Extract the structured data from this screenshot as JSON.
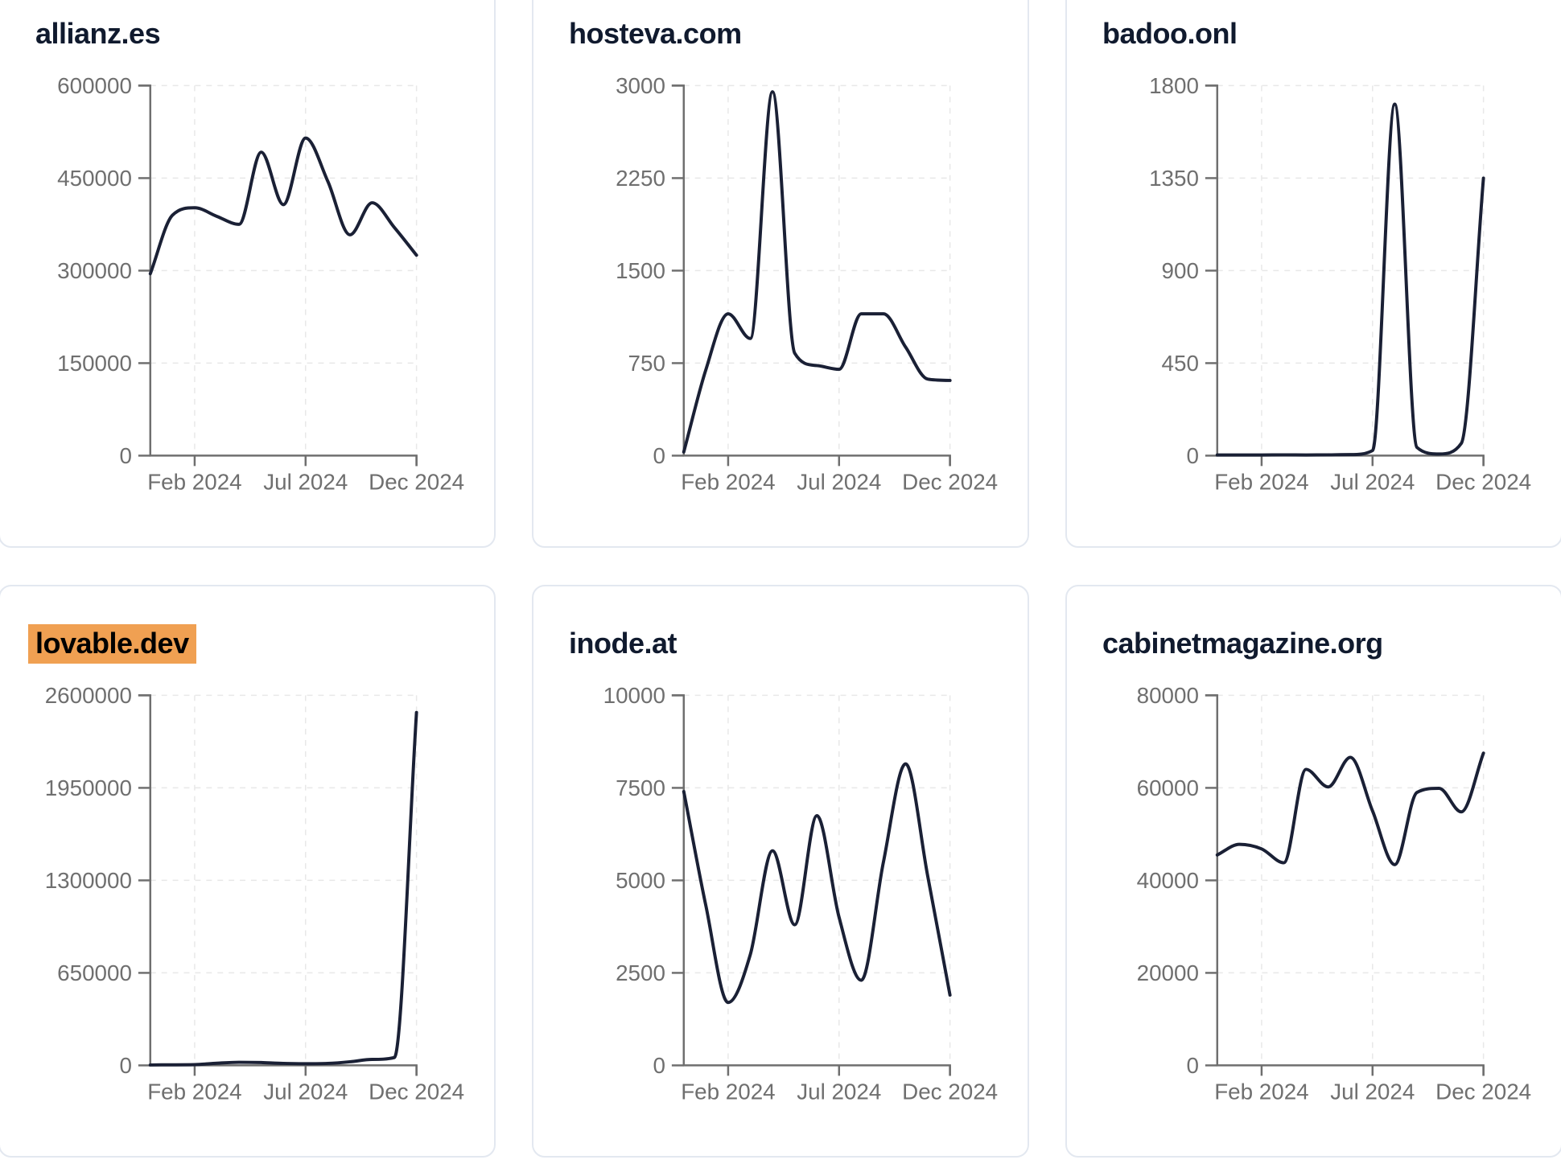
{
  "months": [
    "Dec 2023",
    "Jan 2024",
    "Feb 2024",
    "Mar 2024",
    "Apr 2024",
    "May 2024",
    "Jun 2024",
    "Jul 2024",
    "Aug 2024",
    "Sep 2024",
    "Oct 2024",
    "Nov 2024",
    "Dec 2024"
  ],
  "x_axis": {
    "tick_labels": [
      "Feb 2024",
      "Jul 2024",
      "Dec 2024"
    ],
    "tick_indices": [
      2,
      7,
      12
    ]
  },
  "theme": {
    "line_color": "#1a2035",
    "axis_color": "#6f6f6f",
    "tick_label_color": "#6f6f6f",
    "grid_color": "#e8e8e8",
    "title_color": "#101a2e",
    "highlight_color": "#f0a052",
    "card_border_color": "#e3e8f0",
    "background": "#ffffff"
  },
  "chart_data": [
    {
      "type": "line",
      "title": "allianz.es",
      "highlighted": false,
      "xlabel": "",
      "ylabel": "",
      "grid": true,
      "ylim": [
        0,
        600000
      ],
      "y_ticks": [
        0,
        150000,
        300000,
        450000,
        600000
      ],
      "x_tick_labels": [
        "Feb 2024",
        "Jul 2024",
        "Dec 2024"
      ],
      "x": [
        "Dec 2023",
        "Jan 2024",
        "Feb 2024",
        "Mar 2024",
        "Apr 2024",
        "May 2024",
        "Jun 2024",
        "Jul 2024",
        "Aug 2024",
        "Sep 2024",
        "Oct 2024",
        "Nov 2024",
        "Dec 2024"
      ],
      "values": [
        295000,
        390000,
        402000,
        388000,
        375000,
        492000,
        407000,
        515000,
        445000,
        358000,
        410000,
        370000,
        325000
      ]
    },
    {
      "type": "line",
      "title": "hosteva.com",
      "highlighted": false,
      "xlabel": "",
      "ylabel": "",
      "grid": true,
      "ylim": [
        0,
        3000
      ],
      "y_ticks": [
        0,
        750,
        1500,
        2250,
        3000
      ],
      "x_tick_labels": [
        "Feb 2024",
        "Jul 2024",
        "Dec 2024"
      ],
      "x": [
        "Dec 2023",
        "Jan 2024",
        "Feb 2024",
        "Mar 2024",
        "Apr 2024",
        "May 2024",
        "Jun 2024",
        "Jul 2024",
        "Aug 2024",
        "Sep 2024",
        "Oct 2024",
        "Nov 2024",
        "Dec 2024"
      ],
      "values": [
        30,
        700,
        1150,
        950,
        2950,
        830,
        730,
        700,
        1150,
        1150,
        880,
        620,
        610
      ]
    },
    {
      "type": "line",
      "title": "badoo.onl",
      "highlighted": false,
      "xlabel": "",
      "ylabel": "",
      "grid": true,
      "ylim": [
        0,
        1800
      ],
      "y_ticks": [
        0,
        450,
        900,
        1350,
        1800
      ],
      "x_tick_labels": [
        "Feb 2024",
        "Jul 2024",
        "Dec 2024"
      ],
      "x": [
        "Dec 2023",
        "Jan 2024",
        "Feb 2024",
        "Mar 2024",
        "Apr 2024",
        "May 2024",
        "Jun 2024",
        "Jul 2024",
        "Aug 2024",
        "Sep 2024",
        "Oct 2024",
        "Nov 2024",
        "Dec 2024"
      ],
      "values": [
        3,
        3,
        3,
        4,
        3,
        4,
        5,
        25,
        1710,
        40,
        8,
        60,
        1350
      ]
    },
    {
      "type": "line",
      "title": "lovable.dev",
      "highlighted": true,
      "xlabel": "",
      "ylabel": "",
      "grid": true,
      "ylim": [
        0,
        2600000
      ],
      "y_ticks": [
        0,
        650000,
        1300000,
        1950000,
        2600000
      ],
      "x_tick_labels": [
        "Feb 2024",
        "Jul 2024",
        "Dec 2024"
      ],
      "x": [
        "Dec 2023",
        "Jan 2024",
        "Feb 2024",
        "Mar 2024",
        "Apr 2024",
        "May 2024",
        "Jun 2024",
        "Jul 2024",
        "Aug 2024",
        "Sep 2024",
        "Oct 2024",
        "Nov 2024",
        "Dec 2024"
      ],
      "values": [
        3000,
        4000,
        5000,
        15000,
        22000,
        20000,
        14000,
        12000,
        14000,
        25000,
        42000,
        55000,
        2480000
      ]
    },
    {
      "type": "line",
      "title": "inode.at",
      "highlighted": false,
      "xlabel": "",
      "ylabel": "",
      "grid": true,
      "ylim": [
        0,
        10000
      ],
      "y_ticks": [
        0,
        2500,
        5000,
        7500,
        10000
      ],
      "x_tick_labels": [
        "Feb 2024",
        "Jul 2024",
        "Dec 2024"
      ],
      "x": [
        "Dec 2023",
        "Jan 2024",
        "Feb 2024",
        "Mar 2024",
        "Apr 2024",
        "May 2024",
        "Jun 2024",
        "Jul 2024",
        "Aug 2024",
        "Sep 2024",
        "Oct 2024",
        "Nov 2024",
        "Dec 2024"
      ],
      "values": [
        7400,
        4300,
        1700,
        3000,
        5800,
        3800,
        6750,
        4000,
        2300,
        5500,
        8150,
        5100,
        1900
      ]
    },
    {
      "type": "line",
      "title": "cabinetmagazine.org",
      "highlighted": false,
      "xlabel": "",
      "ylabel": "",
      "grid": true,
      "ylim": [
        0,
        80000
      ],
      "y_ticks": [
        0,
        20000,
        40000,
        60000,
        80000
      ],
      "x_tick_labels": [
        "Feb 2024",
        "Jul 2024",
        "Dec 2024"
      ],
      "x": [
        "Dec 2023",
        "Jan 2024",
        "Feb 2024",
        "Mar 2024",
        "Apr 2024",
        "May 2024",
        "Jun 2024",
        "Jul 2024",
        "Aug 2024",
        "Sep 2024",
        "Oct 2024",
        "Nov 2024",
        "Dec 2024"
      ],
      "values": [
        45500,
        47800,
        46800,
        43800,
        64000,
        60200,
        66600,
        55000,
        43400,
        59000,
        59900,
        54800,
        67500
      ]
    }
  ]
}
